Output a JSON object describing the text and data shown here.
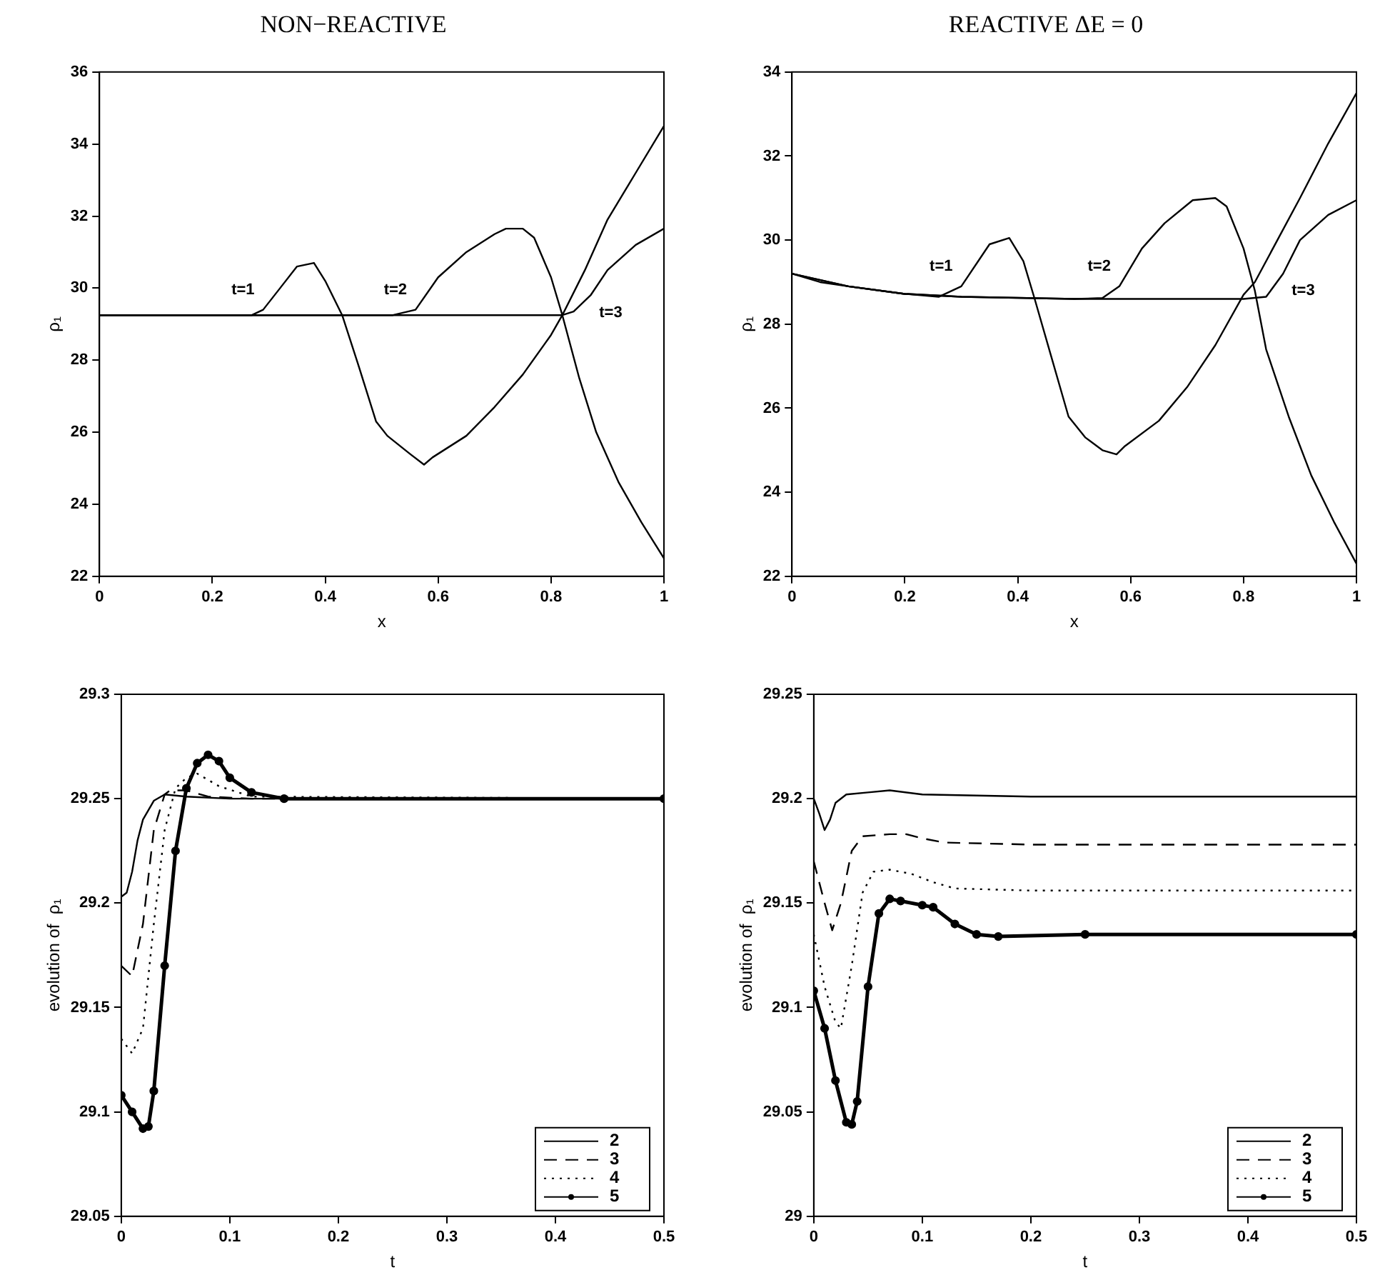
{
  "chart_data": [
    {
      "type": "line",
      "title": "NON−REACTIVE",
      "xlabel": "x",
      "ylabel": "ρ₁",
      "xlim": [
        0,
        1
      ],
      "xticks": [
        0,
        0.2,
        0.4,
        0.6,
        0.8,
        1
      ],
      "ylim": [
        22,
        36
      ],
      "yticks": [
        22,
        24,
        26,
        28,
        30,
        32,
        34,
        36
      ],
      "series": [
        {
          "name": "t=1",
          "color": "#000000",
          "x": [
            0,
            0.27,
            0.29,
            0.32,
            0.35,
            0.38,
            0.4,
            0.43,
            0.46,
            0.49,
            0.51,
            0.55,
            0.575,
            0.59,
            0.65,
            0.7,
            0.75,
            0.8,
            0.82,
            0.86,
            0.9,
            0.95,
            1.0
          ],
          "values": [
            29.25,
            29.25,
            29.4,
            30.0,
            30.6,
            30.7,
            30.2,
            29.25,
            27.8,
            26.3,
            25.9,
            25.4,
            25.1,
            25.3,
            25.9,
            26.7,
            27.6,
            28.7,
            29.25,
            30.5,
            31.9,
            33.2,
            34.5
          ]
        },
        {
          "name": "t=2",
          "color": "#000000",
          "x": [
            0,
            0.52,
            0.56,
            0.6,
            0.65,
            0.7,
            0.72,
            0.75,
            0.77,
            0.8,
            0.82,
            0.85,
            0.88,
            0.92,
            0.96,
            1.0
          ],
          "values": [
            29.25,
            29.25,
            29.4,
            30.3,
            31.0,
            31.5,
            31.65,
            31.65,
            31.4,
            30.3,
            29.25,
            27.5,
            26.0,
            24.6,
            23.5,
            22.5
          ]
        },
        {
          "name": "t=3",
          "color": "#000000",
          "x": [
            0,
            0.82,
            0.84,
            0.87,
            0.9,
            0.95,
            1.0
          ],
          "values": [
            29.25,
            29.25,
            29.35,
            29.8,
            30.5,
            31.2,
            31.65
          ]
        }
      ]
    },
    {
      "type": "line",
      "title": "REACTIVE ΔE = 0",
      "xlabel": "x",
      "ylabel": "ρ₁",
      "xlim": [
        0,
        1
      ],
      "xticks": [
        0,
        0.2,
        0.4,
        0.6,
        0.8,
        1
      ],
      "ylim": [
        22,
        34
      ],
      "yticks": [
        22,
        24,
        26,
        28,
        30,
        32,
        34
      ],
      "series": [
        {
          "name": "t=1",
          "color": "#000000",
          "x": [
            0,
            0.05,
            0.1,
            0.2,
            0.26,
            0.3,
            0.35,
            0.385,
            0.41,
            0.43,
            0.46,
            0.49,
            0.52,
            0.55,
            0.575,
            0.59,
            0.65,
            0.7,
            0.75,
            0.8,
            0.82,
            0.86,
            0.9,
            0.95,
            1.0
          ],
          "values": [
            29.2,
            29.0,
            28.9,
            28.72,
            28.65,
            28.9,
            29.9,
            30.05,
            29.5,
            28.6,
            27.2,
            25.8,
            25.3,
            25.0,
            24.9,
            25.1,
            25.7,
            26.5,
            27.5,
            28.7,
            29.0,
            30.0,
            31.0,
            32.3,
            33.5
          ]
        },
        {
          "name": "t=2",
          "color": "#000000",
          "x": [
            0,
            0.1,
            0.2,
            0.3,
            0.5,
            0.55,
            0.58,
            0.62,
            0.66,
            0.71,
            0.75,
            0.77,
            0.8,
            0.82,
            0.84,
            0.88,
            0.92,
            0.96,
            1.0
          ],
          "values": [
            29.2,
            28.9,
            28.72,
            28.65,
            28.6,
            28.62,
            28.9,
            29.8,
            30.4,
            30.95,
            31.0,
            30.8,
            29.8,
            28.8,
            27.4,
            25.8,
            24.4,
            23.3,
            22.3
          ]
        },
        {
          "name": "t=3",
          "color": "#000000",
          "x": [
            0,
            0.1,
            0.2,
            0.3,
            0.5,
            0.8,
            0.84,
            0.87,
            0.9,
            0.95,
            1.0
          ],
          "values": [
            29.2,
            28.9,
            28.72,
            28.65,
            28.6,
            28.6,
            28.65,
            29.2,
            30.0,
            30.6,
            30.95
          ]
        }
      ]
    },
    {
      "type": "line",
      "xlabel": "t",
      "ylabel": "evolution of  ρ₁",
      "xlim": [
        0,
        0.5
      ],
      "xticks": [
        0,
        0.1,
        0.2,
        0.3,
        0.4,
        0.5
      ],
      "ylim": [
        29.05,
        29.3
      ],
      "yticks": [
        29.05,
        29.1,
        29.15,
        29.2,
        29.25,
        29.3
      ],
      "legend": "bottom right",
      "series": [
        {
          "name": "2",
          "color": "#000000",
          "line_style": "solid",
          "x": [
            0,
            0.005,
            0.01,
            0.015,
            0.02,
            0.03,
            0.04,
            0.06,
            0.1,
            0.5
          ],
          "values": [
            29.203,
            29.205,
            29.215,
            29.23,
            29.24,
            29.249,
            29.252,
            29.251,
            29.25,
            29.25
          ]
        },
        {
          "name": "3",
          "color": "#000000",
          "line_style": "dashed",
          "x": [
            0,
            0.01,
            0.02,
            0.03,
            0.04,
            0.045,
            0.06,
            0.08,
            0.12,
            0.5
          ],
          "values": [
            29.17,
            29.165,
            29.19,
            29.235,
            29.252,
            29.254,
            29.254,
            29.251,
            29.25,
            29.25
          ]
        },
        {
          "name": "4",
          "color": "#000000",
          "line_style": "dotted",
          "x": [
            0,
            0.01,
            0.02,
            0.03,
            0.04,
            0.05,
            0.06,
            0.07,
            0.09,
            0.12,
            0.5
          ],
          "values": [
            29.135,
            29.128,
            29.14,
            29.19,
            29.235,
            29.255,
            29.26,
            29.262,
            29.256,
            29.251,
            29.25
          ]
        },
        {
          "name": "5",
          "color": "#000000",
          "line_style": "solid",
          "marker": "circle",
          "x": [
            0,
            0.01,
            0.02,
            0.025,
            0.03,
            0.04,
            0.05,
            0.06,
            0.07,
            0.08,
            0.09,
            0.1,
            0.12,
            0.15,
            0.5
          ],
          "values": [
            29.108,
            29.1,
            29.092,
            29.093,
            29.11,
            29.17,
            29.225,
            29.255,
            29.267,
            29.271,
            29.268,
            29.26,
            29.253,
            29.25,
            29.25
          ]
        }
      ]
    },
    {
      "type": "line",
      "xlabel": "t",
      "ylabel": "evolution of  ρ₁",
      "xlim": [
        0,
        0.5
      ],
      "xticks": [
        0,
        0.1,
        0.2,
        0.3,
        0.4,
        0.5
      ],
      "ylim": [
        29,
        29.25
      ],
      "yticks": [
        29,
        29.05,
        29.1,
        29.15,
        29.2,
        29.25
      ],
      "legend": "bottom right",
      "series": [
        {
          "name": "2",
          "color": "#000000",
          "line_style": "solid",
          "x": [
            0,
            0.005,
            0.01,
            0.015,
            0.02,
            0.03,
            0.05,
            0.07,
            0.1,
            0.2,
            0.5
          ],
          "values": [
            29.2,
            29.193,
            29.185,
            29.19,
            29.198,
            29.202,
            29.203,
            29.204,
            29.202,
            29.201,
            29.201
          ]
        },
        {
          "name": "3",
          "color": "#000000",
          "line_style": "dashed",
          "x": [
            0,
            0.01,
            0.017,
            0.025,
            0.035,
            0.045,
            0.07,
            0.085,
            0.1,
            0.12,
            0.2,
            0.5
          ],
          "values": [
            29.17,
            29.15,
            29.137,
            29.15,
            29.175,
            29.182,
            29.183,
            29.183,
            29.181,
            29.179,
            29.178,
            29.178
          ]
        },
        {
          "name": "4",
          "color": "#000000",
          "line_style": "dotted",
          "x": [
            0,
            0.01,
            0.02,
            0.025,
            0.035,
            0.045,
            0.055,
            0.07,
            0.09,
            0.11,
            0.13,
            0.2,
            0.5
          ],
          "values": [
            29.135,
            29.11,
            29.093,
            29.09,
            29.12,
            29.155,
            29.165,
            29.166,
            29.164,
            29.16,
            29.157,
            29.156,
            29.156
          ]
        },
        {
          "name": "5",
          "color": "#000000",
          "line_style": "solid",
          "marker": "circle",
          "x": [
            0,
            0.01,
            0.02,
            0.03,
            0.035,
            0.04,
            0.05,
            0.06,
            0.07,
            0.08,
            0.1,
            0.11,
            0.13,
            0.15,
            0.17,
            0.25,
            0.5
          ],
          "values": [
            29.108,
            29.09,
            29.065,
            29.045,
            29.044,
            29.055,
            29.11,
            29.145,
            29.152,
            29.151,
            29.149,
            29.148,
            29.14,
            29.135,
            29.134,
            29.135,
            29.135
          ]
        }
      ]
    }
  ]
}
